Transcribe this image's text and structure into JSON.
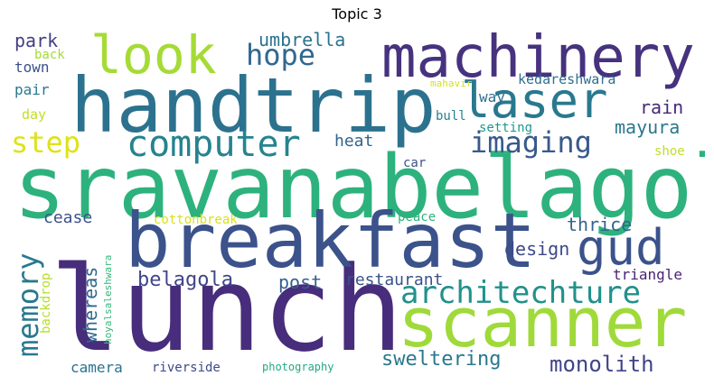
{
  "title": "Topic 3",
  "words": {
    "lunch": {
      "text": "lunch",
      "color": "#472d7b"
    },
    "sravanabelagola": {
      "text": "sravanabelagola",
      "color": "#2db27d"
    },
    "breakfast": {
      "text": "breakfast",
      "color": "#3b528b"
    },
    "handtrip": {
      "text": "handtrip",
      "color": "#2c728e"
    },
    "scanner": {
      "text": "scanner",
      "color": "#9fda3a"
    },
    "machinery": {
      "text": "machinery",
      "color": "#46327e"
    },
    "look": {
      "text": "look",
      "color": "#a5db36"
    },
    "laser": {
      "text": "laser",
      "color": "#29798e"
    },
    "computer": {
      "text": "computer",
      "color": "#25838e"
    },
    "gud": {
      "text": "gud",
      "color": "#3b528b"
    },
    "architechture": {
      "text": "architechture",
      "color": "#21918c"
    },
    "imaging": {
      "text": "imaging",
      "color": "#38598c"
    },
    "step": {
      "text": "step",
      "color": "#dde318"
    },
    "hope": {
      "text": "hope",
      "color": "#31688e"
    },
    "memory": {
      "text": "memory",
      "color": "#2a788e"
    },
    "monolith": {
      "text": "monolith",
      "color": "#414487"
    },
    "sweltering": {
      "text": "sweltering",
      "color": "#2a788e"
    },
    "umbrella": {
      "text": "umbrella",
      "color": "#2c728e"
    },
    "park": {
      "text": "park",
      "color": "#433e85"
    },
    "belagola": {
      "text": "belagola",
      "color": "#404688"
    },
    "post": {
      "text": "post",
      "color": "#355f8d"
    },
    "restaurant": {
      "text": "restaurant",
      "color": "#3b528b"
    },
    "design": {
      "text": "design",
      "color": "#3e4989"
    },
    "thrice": {
      "text": "thrice",
      "color": "#32658e"
    },
    "mayura": {
      "text": "mayura",
      "color": "#2a788e"
    },
    "rain": {
      "text": "rain",
      "color": "#482878"
    },
    "triangle": {
      "text": "triangle",
      "color": "#482475"
    },
    "whereas": {
      "text": "whereas",
      "color": "#31688e"
    },
    "heat": {
      "text": "heat",
      "color": "#33638d"
    },
    "cease": {
      "text": "cease",
      "color": "#3b528b"
    },
    "camera": {
      "text": "camera",
      "color": "#2c728e"
    },
    "riverside": {
      "text": "riverside",
      "color": "#3e4989"
    },
    "way": {
      "text": "way",
      "color": "#2d708e"
    },
    "kedareshwara": {
      "text": "kedareshwara",
      "color": "#2d708e"
    },
    "bull": {
      "text": "bull",
      "color": "#26828e"
    },
    "setting": {
      "text": "setting",
      "color": "#1f988b"
    },
    "shoe": {
      "text": "shoe",
      "color": "#bddf26"
    },
    "car": {
      "text": "car",
      "color": "#3b528b"
    },
    "peace": {
      "text": "peace",
      "color": "#2db27d"
    },
    "cottonbreak": {
      "text": "cottonbreak",
      "color": "#d8e219"
    },
    "town": {
      "text": "town",
      "color": "#3b528b"
    },
    "back": {
      "text": "back",
      "color": "#a5db36"
    },
    "pair": {
      "text": "pair",
      "color": "#2a788e"
    },
    "day": {
      "text": "day",
      "color": "#c2df23"
    },
    "backdrop": {
      "text": "backdrop",
      "color": "#b5de2b"
    },
    "hoyalsaleshwara": {
      "text": "hoyalsaleshwara",
      "color": "#35b779"
    },
    "photography": {
      "text": "photography",
      "color": "#22a884"
    },
    "mahavir": {
      "text": "mahavir",
      "color": "#d8e219"
    }
  }
}
